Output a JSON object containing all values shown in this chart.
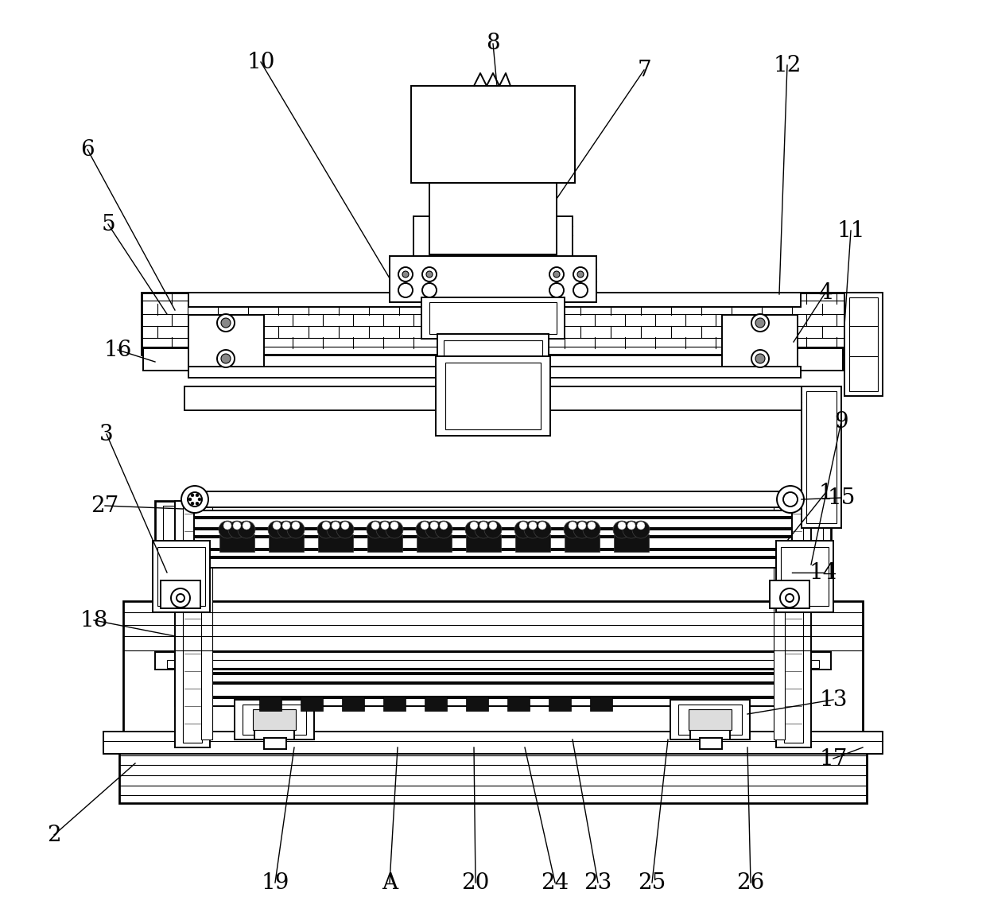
{
  "bg": "#ffffff",
  "fw": 12.4,
  "fh": 11.57
}
